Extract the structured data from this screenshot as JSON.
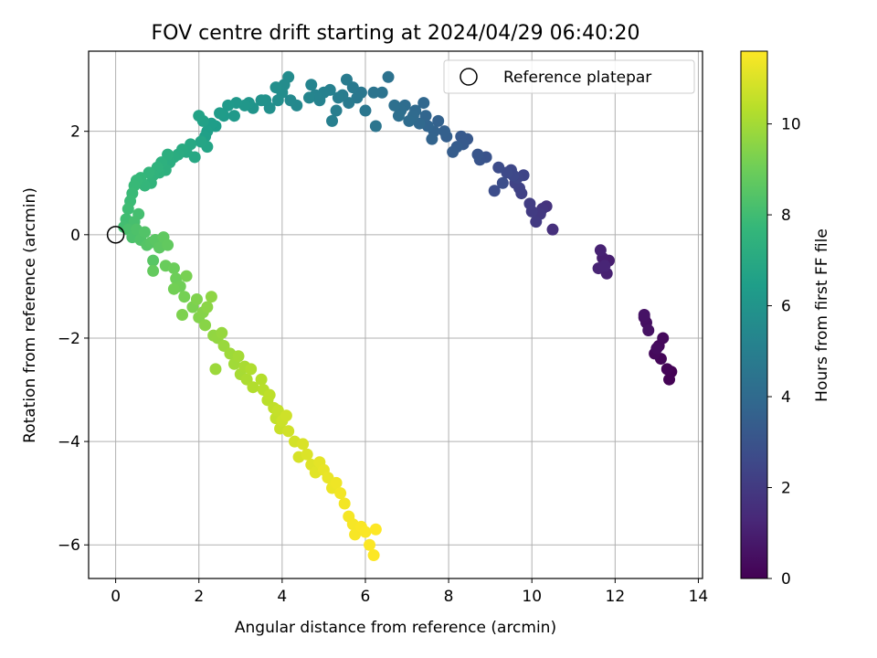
{
  "chart_data": {
    "type": "scatter",
    "title": "FOV centre drift starting at 2024/04/29 06:40:20",
    "xlabel": "Angular distance from reference (arcmin)",
    "ylabel": "Rotation from reference (arcmin)",
    "xlim": [
      -0.65,
      14.1
    ],
    "ylim": [
      -6.65,
      3.55
    ],
    "xticks": [
      0,
      2,
      4,
      6,
      8,
      10,
      12,
      14
    ],
    "yticks": [
      -6,
      -4,
      -2,
      0,
      2
    ],
    "grid": true,
    "legend": {
      "placement": "upper-right",
      "entries": [
        "Reference platepar"
      ]
    },
    "reference_point": {
      "x": 0,
      "y": 0,
      "marker": "open-circle"
    },
    "colorbar": {
      "label": "Hours from first FF file",
      "colormap": "viridis",
      "range": [
        0,
        11.6
      ],
      "ticks": [
        0,
        2,
        4,
        6,
        8,
        10
      ]
    },
    "series": [
      {
        "columns": [
          "x",
          "y",
          "hours"
        ],
        "points": [
          [
            13.35,
            -2.65,
            0.0
          ],
          [
            13.3,
            -2.8,
            0.05
          ],
          [
            13.25,
            -2.6,
            0.1
          ],
          [
            13.1,
            -2.4,
            0.15
          ],
          [
            13.05,
            -2.15,
            0.2
          ],
          [
            12.95,
            -2.3,
            0.25
          ],
          [
            13.15,
            -2.0,
            0.3
          ],
          [
            13.0,
            -2.2,
            0.35
          ],
          [
            12.75,
            -1.7,
            0.45
          ],
          [
            12.7,
            -1.6,
            0.5
          ],
          [
            12.8,
            -1.85,
            0.55
          ],
          [
            12.7,
            -1.55,
            0.6
          ],
          [
            11.75,
            -0.55,
            0.9
          ],
          [
            11.85,
            -0.5,
            0.95
          ],
          [
            11.7,
            -0.45,
            1.0
          ],
          [
            11.8,
            -0.75,
            1.05
          ],
          [
            11.65,
            -0.3,
            1.1
          ],
          [
            11.6,
            -0.65,
            1.15
          ],
          [
            11.75,
            -0.6,
            1.2
          ],
          [
            10.5,
            0.1,
            1.6
          ],
          [
            10.35,
            0.55,
            1.7
          ],
          [
            10.25,
            0.5,
            1.8
          ],
          [
            10.2,
            0.4,
            1.9
          ],
          [
            10.1,
            0.25,
            2.0
          ],
          [
            10.0,
            0.45,
            2.05
          ],
          [
            9.95,
            0.6,
            2.1
          ],
          [
            9.75,
            0.8,
            2.25
          ],
          [
            9.7,
            0.9,
            2.3
          ],
          [
            9.6,
            1.0,
            2.35
          ],
          [
            9.8,
            1.15,
            2.4
          ],
          [
            9.65,
            1.1,
            2.45
          ],
          [
            9.5,
            1.25,
            2.5
          ],
          [
            9.55,
            1.15,
            2.55
          ],
          [
            9.4,
            1.2,
            2.6
          ],
          [
            9.2,
            1.3,
            2.7
          ],
          [
            9.1,
            0.85,
            2.75
          ],
          [
            9.3,
            1.0,
            2.8
          ],
          [
            8.9,
            1.5,
            3.0
          ],
          [
            8.75,
            1.45,
            3.05
          ],
          [
            8.7,
            1.55,
            3.1
          ],
          [
            8.45,
            1.85,
            3.2
          ],
          [
            8.3,
            1.9,
            3.25
          ],
          [
            8.35,
            1.75,
            3.3
          ],
          [
            8.2,
            1.7,
            3.35
          ],
          [
            8.1,
            1.6,
            3.4
          ],
          [
            7.95,
            1.9,
            3.5
          ],
          [
            7.9,
            2.0,
            3.55
          ],
          [
            7.75,
            2.2,
            3.6
          ],
          [
            7.65,
            2.0,
            3.65
          ],
          [
            7.6,
            1.85,
            3.7
          ],
          [
            7.5,
            2.1,
            3.75
          ],
          [
            7.45,
            2.3,
            3.8
          ],
          [
            7.4,
            2.55,
            3.85
          ],
          [
            7.3,
            2.15,
            3.9
          ],
          [
            7.2,
            2.4,
            3.95
          ],
          [
            7.15,
            2.3,
            4.0
          ],
          [
            7.05,
            2.2,
            4.05
          ],
          [
            6.95,
            2.5,
            4.1
          ],
          [
            6.85,
            2.4,
            4.15
          ],
          [
            6.8,
            2.3,
            4.2
          ],
          [
            6.7,
            2.5,
            4.25
          ],
          [
            6.55,
            3.05,
            4.35
          ],
          [
            6.4,
            2.75,
            4.4
          ],
          [
            6.2,
            2.75,
            4.45
          ],
          [
            6.25,
            2.1,
            4.5
          ],
          [
            6.0,
            2.4,
            4.55
          ],
          [
            5.9,
            2.75,
            4.6
          ],
          [
            5.8,
            2.65,
            4.65
          ],
          [
            5.7,
            2.85,
            4.7
          ],
          [
            5.6,
            2.55,
            4.75
          ],
          [
            5.55,
            3.0,
            4.8
          ],
          [
            5.45,
            2.7,
            4.85
          ],
          [
            5.35,
            2.65,
            4.9
          ],
          [
            5.3,
            2.4,
            4.95
          ],
          [
            5.2,
            2.2,
            5.0
          ],
          [
            5.15,
            2.8,
            5.05
          ],
          [
            5.0,
            2.75,
            5.1
          ],
          [
            4.9,
            2.6,
            5.15
          ],
          [
            4.8,
            2.7,
            5.2
          ],
          [
            4.7,
            2.9,
            5.25
          ],
          [
            4.65,
            2.65,
            5.3
          ],
          [
            4.35,
            2.5,
            5.45
          ],
          [
            4.2,
            2.6,
            5.5
          ],
          [
            4.15,
            3.05,
            5.55
          ],
          [
            4.05,
            2.9,
            5.6
          ],
          [
            4.0,
            2.75,
            5.65
          ],
          [
            3.9,
            2.6,
            5.7
          ],
          [
            3.85,
            2.85,
            5.75
          ],
          [
            3.7,
            2.45,
            5.8
          ],
          [
            3.6,
            2.6,
            5.85
          ],
          [
            3.5,
            2.6,
            5.9
          ],
          [
            3.3,
            2.45,
            6.0
          ],
          [
            3.2,
            2.55,
            6.05
          ],
          [
            3.1,
            2.5,
            6.1
          ],
          [
            2.9,
            2.55,
            6.15
          ],
          [
            2.85,
            2.3,
            6.2
          ],
          [
            2.7,
            2.5,
            6.25
          ],
          [
            2.6,
            2.3,
            6.3
          ],
          [
            2.5,
            2.35,
            6.35
          ],
          [
            2.4,
            2.1,
            6.4
          ],
          [
            2.3,
            2.15,
            6.45
          ],
          [
            2.2,
            2.0,
            6.5
          ],
          [
            2.15,
            1.9,
            6.55
          ],
          [
            2.1,
            2.2,
            6.6
          ],
          [
            2.0,
            2.3,
            6.65
          ],
          [
            2.2,
            1.7,
            6.75
          ],
          [
            2.05,
            1.8,
            6.8
          ],
          [
            1.9,
            1.5,
            6.9
          ],
          [
            1.8,
            1.75,
            6.95
          ],
          [
            1.7,
            1.6,
            7.0
          ],
          [
            1.6,
            1.65,
            7.05
          ],
          [
            1.5,
            1.55,
            7.1
          ],
          [
            1.4,
            1.5,
            7.15
          ],
          [
            1.3,
            1.4,
            7.2
          ],
          [
            1.25,
            1.55,
            7.25
          ],
          [
            1.2,
            1.25,
            7.3
          ],
          [
            1.1,
            1.4,
            7.35
          ],
          [
            1.05,
            1.2,
            7.4
          ],
          [
            1.0,
            1.3,
            7.45
          ],
          [
            0.9,
            1.15,
            7.5
          ],
          [
            0.85,
            1.0,
            7.55
          ],
          [
            0.8,
            1.2,
            7.6
          ],
          [
            0.7,
            0.95,
            7.65
          ],
          [
            0.6,
            1.1,
            7.7
          ],
          [
            0.5,
            1.05,
            7.75
          ],
          [
            0.45,
            0.95,
            7.8
          ],
          [
            0.4,
            0.8,
            7.85
          ],
          [
            0.35,
            0.65,
            7.9
          ],
          [
            0.3,
            0.5,
            7.95
          ],
          [
            0.25,
            0.3,
            8.0
          ],
          [
            0.2,
            0.15,
            8.05
          ],
          [
            0.55,
            0.4,
            8.1
          ],
          [
            0.45,
            0.25,
            8.15
          ],
          [
            0.3,
            0.1,
            8.2
          ],
          [
            0.4,
            -0.05,
            8.25
          ],
          [
            0.5,
            0.1,
            8.3
          ],
          [
            0.6,
            -0.1,
            8.35
          ],
          [
            0.7,
            0.05,
            8.4
          ],
          [
            0.75,
            -0.2,
            8.45
          ],
          [
            0.85,
            -0.15,
            8.5
          ],
          [
            0.9,
            -0.5,
            8.55
          ],
          [
            0.95,
            -0.1,
            8.6
          ],
          [
            1.05,
            -0.25,
            8.65
          ],
          [
            1.15,
            -0.05,
            8.7
          ],
          [
            1.25,
            -0.2,
            8.75
          ],
          [
            0.9,
            -0.7,
            8.8
          ],
          [
            1.2,
            -0.6,
            8.9
          ],
          [
            1.4,
            -0.65,
            8.95
          ],
          [
            1.45,
            -0.85,
            9.0
          ],
          [
            1.55,
            -1.0,
            9.05
          ],
          [
            1.4,
            -1.05,
            9.1
          ],
          [
            1.65,
            -1.2,
            9.15
          ],
          [
            1.7,
            -0.8,
            9.2
          ],
          [
            1.85,
            -1.4,
            9.25
          ],
          [
            1.6,
            -1.55,
            9.3
          ],
          [
            1.95,
            -1.25,
            9.35
          ],
          [
            2.0,
            -1.6,
            9.4
          ],
          [
            2.1,
            -1.5,
            9.45
          ],
          [
            2.15,
            -1.75,
            9.5
          ],
          [
            2.2,
            -1.4,
            9.55
          ],
          [
            2.3,
            -1.2,
            9.6
          ],
          [
            2.35,
            -1.95,
            9.65
          ],
          [
            2.45,
            -2.0,
            9.7
          ],
          [
            2.55,
            -1.9,
            9.75
          ],
          [
            2.6,
            -2.15,
            9.8
          ],
          [
            2.4,
            -2.6,
            9.85
          ],
          [
            2.75,
            -2.3,
            9.9
          ],
          [
            2.85,
            -2.5,
            9.95
          ],
          [
            2.95,
            -2.35,
            10.0
          ],
          [
            3.0,
            -2.7,
            10.05
          ],
          [
            3.1,
            -2.55,
            10.1
          ],
          [
            3.15,
            -2.8,
            10.15
          ],
          [
            3.25,
            -2.6,
            10.2
          ],
          [
            3.3,
            -2.95,
            10.25
          ],
          [
            3.5,
            -2.8,
            10.3
          ],
          [
            3.55,
            -3.0,
            10.35
          ],
          [
            3.65,
            -3.2,
            10.4
          ],
          [
            3.7,
            -3.1,
            10.45
          ],
          [
            3.8,
            -3.35,
            10.5
          ],
          [
            3.85,
            -3.55,
            10.55
          ],
          [
            3.9,
            -3.4,
            10.6
          ],
          [
            3.95,
            -3.75,
            10.65
          ],
          [
            4.0,
            -3.6,
            10.7
          ],
          [
            4.1,
            -3.5,
            10.75
          ],
          [
            4.15,
            -3.8,
            10.8
          ],
          [
            4.3,
            -4.0,
            10.85
          ],
          [
            4.4,
            -4.3,
            10.9
          ],
          [
            4.5,
            -4.05,
            10.95
          ],
          [
            4.6,
            -4.25,
            11.0
          ],
          [
            4.7,
            -4.45,
            11.05
          ],
          [
            4.8,
            -4.6,
            11.1
          ],
          [
            4.9,
            -4.4,
            11.15
          ],
          [
            5.0,
            -4.55,
            11.2
          ],
          [
            5.1,
            -4.7,
            11.25
          ],
          [
            5.2,
            -4.9,
            11.3
          ],
          [
            5.3,
            -4.8,
            11.35
          ],
          [
            5.4,
            -5.0,
            11.4
          ],
          [
            5.5,
            -5.2,
            11.42
          ],
          [
            5.6,
            -5.45,
            11.45
          ],
          [
            5.7,
            -5.6,
            11.47
          ],
          [
            5.75,
            -5.8,
            11.5
          ],
          [
            5.9,
            -5.65,
            11.52
          ],
          [
            6.0,
            -5.75,
            11.54
          ],
          [
            6.1,
            -6.0,
            11.56
          ],
          [
            6.2,
            -6.2,
            11.58
          ],
          [
            6.25,
            -5.7,
            11.6
          ]
        ]
      }
    ]
  }
}
